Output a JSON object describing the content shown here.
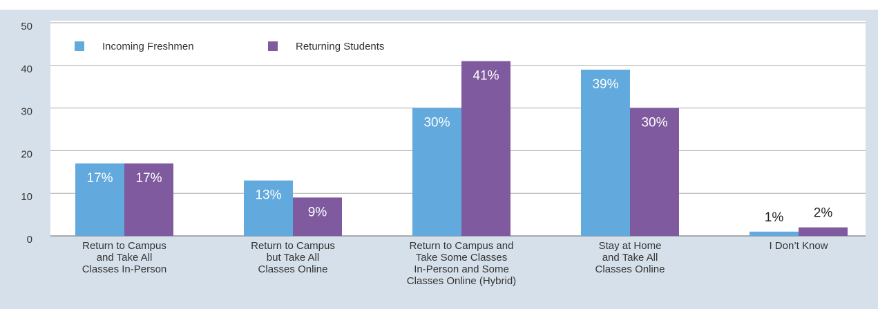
{
  "chart_data": {
    "type": "bar",
    "categories": [
      [
        "Return to Campus",
        "and Take All",
        "Classes In-Person"
      ],
      [
        "Return to Campus",
        "but Take All",
        "Classes Online"
      ],
      [
        "Return to Campus and",
        "Take Some Classes",
        "In-Person and Some",
        "Classes Online (Hybrid)"
      ],
      [
        "Stay at Home",
        "and Take All",
        "Classes Online"
      ],
      [
        "I Don’t Know"
      ]
    ],
    "series": [
      {
        "name": "Incoming Freshmen",
        "color": "#62a9dd",
        "values": [
          17,
          13,
          30,
          39,
          1
        ],
        "value_labels": [
          "17%",
          "13%",
          "30%",
          "39%",
          "1%"
        ]
      },
      {
        "name": "Returning Students",
        "color": "#7f5a9e",
        "values": [
          17,
          9,
          41,
          30,
          2
        ],
        "value_labels": [
          "17%",
          "9%",
          "41%",
          "30%",
          "2%"
        ]
      }
    ],
    "ylim": [
      0,
      50
    ],
    "yticks": [
      0,
      10,
      20,
      30,
      40,
      50
    ],
    "grid": true,
    "legend": "upper left"
  }
}
